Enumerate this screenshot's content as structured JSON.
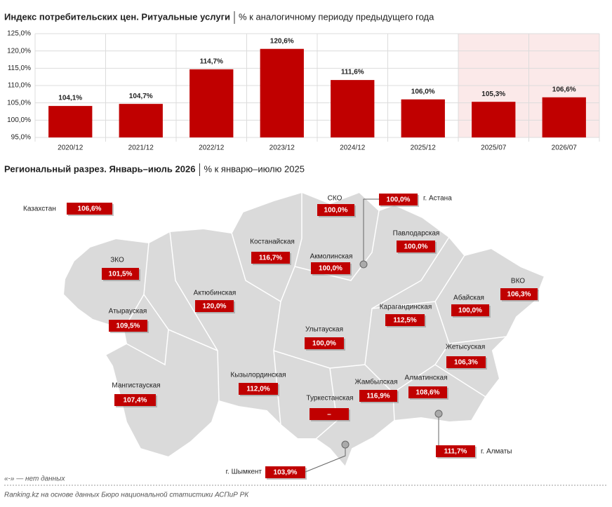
{
  "chart_data": {
    "type": "bar",
    "title": "Индекс потребительских цен. Ритуальные услуги",
    "subtitle": "% к аналогичному периоду предыдущего года",
    "categories": [
      "2020/12",
      "2021/12",
      "2022/12",
      "2023/12",
      "2024/12",
      "2025/12",
      "2025/07",
      "2026/07"
    ],
    "values": [
      104.1,
      104.7,
      114.7,
      120.6,
      111.6,
      106.0,
      105.3,
      106.6
    ],
    "value_labels": [
      "104,1%",
      "104,7%",
      "114,7%",
      "120,6%",
      "111,6%",
      "106,0%",
      "105,3%",
      "106,6%"
    ],
    "color": "#c00000",
    "ylim": [
      95,
      125
    ],
    "yticks": [
      {
        "value": 95,
        "label": "95,0%"
      },
      {
        "value": 100,
        "label": "100,0%"
      },
      {
        "value": 105,
        "label": "105,0%"
      },
      {
        "value": 110,
        "label": "110,0%"
      },
      {
        "value": 115,
        "label": "115,0%"
      },
      {
        "value": 120,
        "label": "120,0%"
      },
      {
        "value": 125,
        "label": "125,0%"
      }
    ],
    "grid": true
  },
  "map": {
    "title": "Региональный разрез. Январь–июль 2026",
    "subtitle": "% к январю–июлю 2025",
    "regions": [
      {
        "name": "Казахстан",
        "value": "106,6%"
      },
      {
        "name": "ЗКО",
        "value": "101,5%"
      },
      {
        "name": "Атырауская",
        "value": "109,5%"
      },
      {
        "name": "Мангистауская",
        "value": "107,4%"
      },
      {
        "name": "Актюбинская",
        "value": "120,0%"
      },
      {
        "name": "Костанайская",
        "value": "116,7%"
      },
      {
        "name": "СКО",
        "value": "100,0%"
      },
      {
        "name": "Акмолинская",
        "value": "100,0%"
      },
      {
        "name": "г. Астана",
        "value": "100,0%"
      },
      {
        "name": "Павлодарская",
        "value": "100,0%"
      },
      {
        "name": "ВКО",
        "value": "106,3%"
      },
      {
        "name": "Абайская",
        "value": "100,0%"
      },
      {
        "name": "Карагандинская",
        "value": "112,5%"
      },
      {
        "name": "Улытауская",
        "value": "100,0%"
      },
      {
        "name": "Жетысуская",
        "value": "106,3%"
      },
      {
        "name": "Кызылординская",
        "value": "112,0%"
      },
      {
        "name": "Алматинская",
        "value": "108,6%"
      },
      {
        "name": "Жамбылская",
        "value": "116,9%"
      },
      {
        "name": "Туркестанская",
        "value": "–"
      },
      {
        "name": "г. Алматы",
        "value": "111,7%"
      },
      {
        "name": "г. Шымкент",
        "value": "103,9%"
      }
    ]
  },
  "footer": {
    "note": "«-» — нет данных",
    "source": "Ranking.kz на основе данных Бюро национальной статистики АСПиР РК"
  }
}
